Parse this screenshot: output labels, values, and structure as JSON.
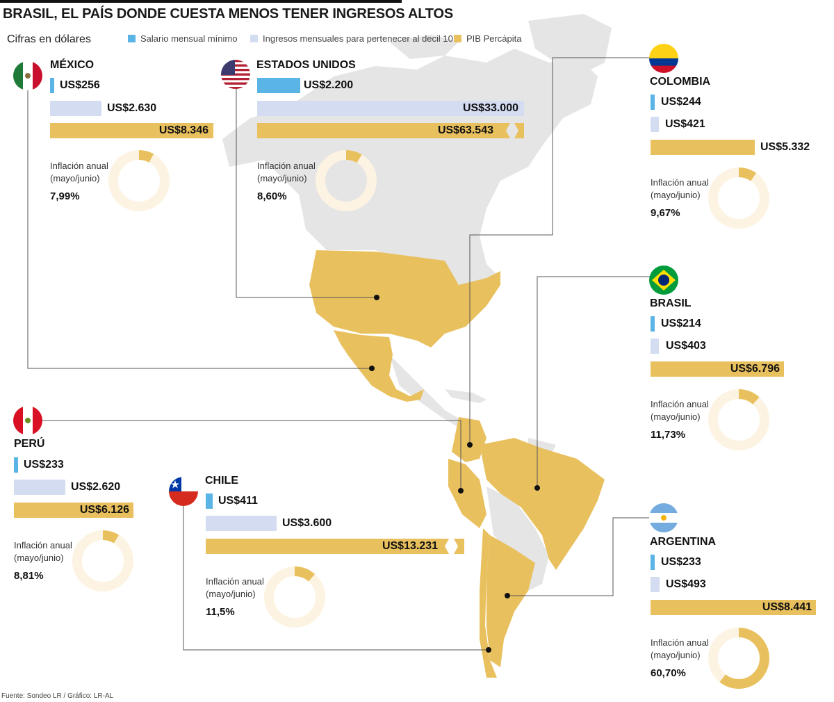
{
  "title": "BRASIL, EL PAÍS DONDE CUESTA MENOS TENER INGRESOS ALTOS",
  "subtitle": "Cifras en dólares",
  "source": "Fuente: Sondeo LR / Gráfico: LR-AL",
  "inflation_label_line1": "Inflación anual",
  "inflation_label_line2": "(mayo/junio)",
  "colors": {
    "salario_minimo": "#5ab4e5",
    "decil_10": "#d3dcf1",
    "pib": "#e9c05e",
    "donut_track": "#fdf3e2",
    "map_land": "#e4e4e4",
    "map_highlight": "#e9c05e"
  },
  "chart_data": {
    "type": "bar",
    "legend": [
      "Salario mensual mínimo",
      "Ingresos mensuales para pertenecer al decil 10",
      "PIB Percápita"
    ],
    "series": [
      {
        "name": "Salario mensual mínimo",
        "unit": "US$"
      },
      {
        "name": "Ingresos mensuales para pertenecer al decil 10",
        "unit": "US$"
      },
      {
        "name": "PIB Percápita",
        "unit": "US$"
      }
    ],
    "countries": [
      {
        "key": "mexico",
        "name": "MÉXICO",
        "salario_min": 256,
        "salario_min_label": "US$256",
        "decil10": 2630,
        "decil10_label": "US$2.630",
        "pib": 8346,
        "pib_label": "US$8.346",
        "inflacion": 7.99,
        "inflacion_label": "7,99%"
      },
      {
        "key": "usa",
        "name": "ESTADOS UNIDOS",
        "salario_min": 2200,
        "salario_min_label": "US$2.200",
        "decil10": 33000,
        "decil10_label": "US$33.000",
        "pib": 63543,
        "pib_label": "US$63.543",
        "inflacion": 8.6,
        "inflacion_label": "8,60%"
      },
      {
        "key": "colombia",
        "name": "COLOMBIA",
        "salario_min": 244,
        "salario_min_label": "US$244",
        "decil10": 421,
        "decil10_label": "US$421",
        "pib": 5332,
        "pib_label": "US$5.332",
        "inflacion": 9.67,
        "inflacion_label": "9,67%"
      },
      {
        "key": "brasil",
        "name": "BRASIL",
        "salario_min": 214,
        "salario_min_label": "US$214",
        "decil10": 403,
        "decil10_label": "US$403",
        "pib": 6796,
        "pib_label": "US$6.796",
        "inflacion": 11.73,
        "inflacion_label": "11,73%"
      },
      {
        "key": "peru",
        "name": "PERÚ",
        "salario_min": 233,
        "salario_min_label": "US$233",
        "decil10": 2620,
        "decil10_label": "US$2.620",
        "pib": 6126,
        "pib_label": "US$6.126",
        "inflacion": 8.81,
        "inflacion_label": "8,81%"
      },
      {
        "key": "chile",
        "name": "CHILE",
        "salario_min": 411,
        "salario_min_label": "US$411",
        "decil10": 3600,
        "decil10_label": "US$3.600",
        "pib": 13231,
        "pib_label": "US$13.231",
        "inflacion": 11.5,
        "inflacion_label": "11,5%"
      },
      {
        "key": "argentina",
        "name": "ARGENTINA",
        "salario_min": 233,
        "salario_min_label": "US$233",
        "decil10": 493,
        "decil10_label": "US$493",
        "pib": 8441,
        "pib_label": "US$8.441",
        "inflacion": 60.7,
        "inflacion_label": "60,70%"
      }
    ]
  }
}
